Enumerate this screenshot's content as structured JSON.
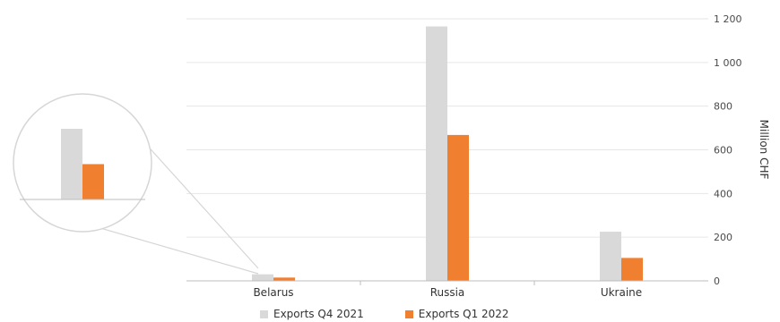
{
  "chart_data": {
    "type": "bar",
    "categories": [
      "Belarus",
      "Russia",
      "Ukraine"
    ],
    "series": [
      {
        "name": "Exports Q4 2021",
        "color": "#d9d9d9",
        "values": [
          30,
          1165,
          225
        ]
      },
      {
        "name": "Exports Q1 2022",
        "color": "#f07f2f",
        "values": [
          15,
          668,
          105
        ]
      }
    ],
    "ylabel": "Million CHF",
    "ylim": [
      0,
      1200
    ],
    "yticks": [
      0,
      200,
      400,
      600,
      800,
      "1 000",
      "1 200"
    ],
    "grid": true,
    "legend_position": "bottom",
    "y_axis_side": "right",
    "zoom_inset": {
      "category": "Belarus",
      "shown": true
    }
  }
}
